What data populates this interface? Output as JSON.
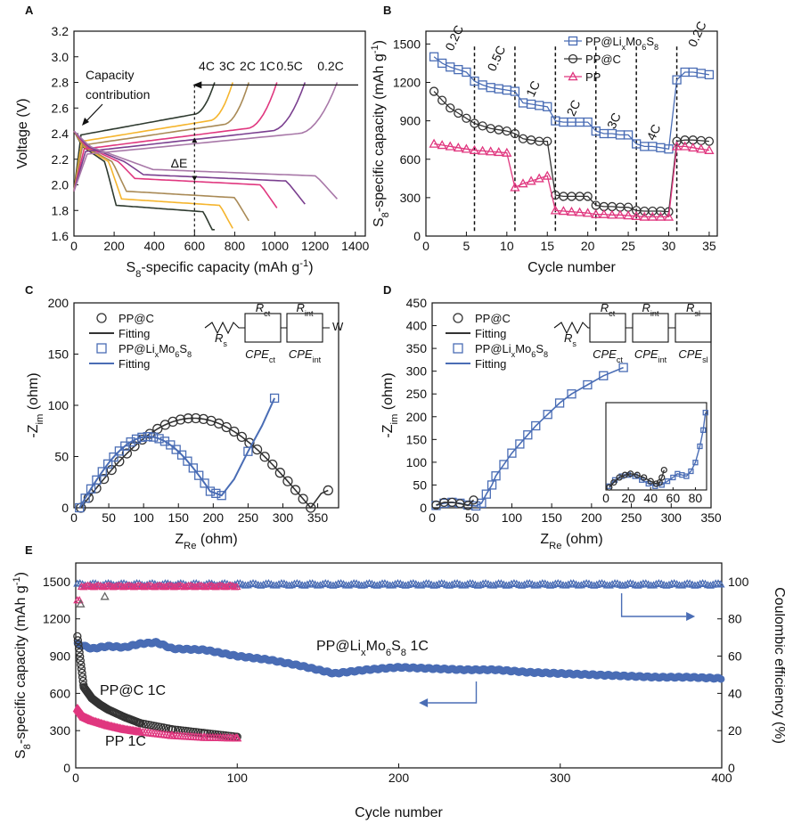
{
  "colors": {
    "blue": "#4a6db5",
    "pink": "#e0377f",
    "black": "#333333",
    "c4": "#2f3b30",
    "c3": "#f5b52e",
    "c2": "#a98a56",
    "c1": "#e0377f",
    "c05": "#7a3f8f",
    "c02": "#a878a8"
  },
  "chart_data": [
    {
      "panel": "A",
      "type": "line",
      "xlabel": "S8-specific capacity (mAh g-1)",
      "ylabel": "Voltage (V)",
      "xlim": [
        0,
        1450
      ],
      "ylim": [
        1.6,
        3.2
      ],
      "xticks": [
        0,
        200,
        400,
        600,
        800,
        1000,
        1200,
        1400
      ],
      "yticks": [
        1.6,
        1.8,
        2.0,
        2.2,
        2.4,
        2.6,
        2.8,
        3.0,
        3.2
      ],
      "rate_labels": [
        "4C",
        "3C",
        "2C",
        "1C",
        "0.5C",
        "0.2C"
      ],
      "annotations": {
        "capacity": [
          "Capacity",
          "contribution"
        ],
        "delta": "ΔE"
      },
      "series": [
        {
          "name": "4C",
          "color": "c4",
          "capacity": 700,
          "charge_plateau": 2.45,
          "discharge_plateau": 1.82
        },
        {
          "name": "3C",
          "color": "c3",
          "capacity": 790,
          "charge_plateau": 2.4,
          "discharge_plateau": 1.87
        },
        {
          "name": "2C",
          "color": "c2",
          "capacity": 870,
          "charge_plateau": 2.37,
          "discharge_plateau": 1.93
        },
        {
          "name": "1C",
          "color": "c1",
          "capacity": 1010,
          "charge_plateau": 2.34,
          "discharge_plateau": 2.03
        },
        {
          "name": "0.5C",
          "color": "c05",
          "capacity": 1150,
          "charge_plateau": 2.32,
          "discharge_plateau": 2.06
        },
        {
          "name": "0.2C",
          "color": "c02",
          "capacity": 1310,
          "charge_plateau": 2.3,
          "discharge_plateau": 2.1
        }
      ]
    },
    {
      "panel": "B",
      "type": "scatter",
      "xlabel": "Cycle number",
      "ylabel": "S8-specific capacity (mAh g-1)",
      "xlim": [
        0,
        36
      ],
      "ylim": [
        0,
        1600
      ],
      "xticks": [
        0,
        5,
        10,
        15,
        20,
        25,
        30,
        35
      ],
      "yticks": [
        0,
        300,
        600,
        900,
        1200,
        1500
      ],
      "rate_labels": [
        "0.2C",
        "0.5C",
        "1C",
        "2C",
        "3C",
        "4C",
        "0.2C"
      ],
      "dividers": [
        6,
        11,
        16,
        21,
        26,
        31
      ],
      "legend": [
        "PP@LixMo6S8",
        "PP@C",
        "PP"
      ],
      "series": [
        {
          "name": "PP@LixMo6S8",
          "color": "blue",
          "marker": "square",
          "x": [
            1,
            2,
            3,
            4,
            5,
            6,
            7,
            8,
            9,
            10,
            11,
            12,
            13,
            14,
            15,
            16,
            17,
            18,
            19,
            20,
            21,
            22,
            23,
            24,
            25,
            26,
            27,
            28,
            29,
            30,
            31,
            32,
            33,
            34,
            35
          ],
          "y": [
            1400,
            1350,
            1320,
            1300,
            1280,
            1210,
            1180,
            1160,
            1150,
            1140,
            1130,
            1040,
            1030,
            1020,
            1010,
            900,
            890,
            890,
            890,
            890,
            820,
            800,
            800,
            790,
            790,
            720,
            700,
            700,
            690,
            680,
            1220,
            1280,
            1280,
            1270,
            1260
          ]
        },
        {
          "name": "PP@C",
          "color": "black",
          "marker": "circle",
          "x": [
            1,
            2,
            3,
            4,
            5,
            6,
            7,
            8,
            9,
            10,
            11,
            12,
            13,
            14,
            15,
            16,
            17,
            18,
            19,
            20,
            21,
            22,
            23,
            24,
            25,
            26,
            27,
            28,
            29,
            30,
            31,
            32,
            33,
            34,
            35
          ],
          "y": [
            1130,
            1060,
            1000,
            960,
            920,
            880,
            860,
            840,
            830,
            820,
            800,
            760,
            750,
            740,
            740,
            320,
            310,
            310,
            310,
            310,
            240,
            230,
            230,
            225,
            225,
            200,
            195,
            195,
            195,
            190,
            740,
            750,
            750,
            745,
            740
          ]
        },
        {
          "name": "PP",
          "color": "pink",
          "marker": "triangle",
          "x": [
            1,
            2,
            3,
            4,
            5,
            6,
            7,
            8,
            9,
            10,
            11,
            12,
            13,
            14,
            15,
            16,
            17,
            18,
            19,
            20,
            21,
            22,
            23,
            24,
            25,
            26,
            27,
            28,
            29,
            30,
            31,
            32,
            33,
            34,
            35
          ],
          "y": [
            720,
            710,
            700,
            690,
            680,
            670,
            665,
            660,
            655,
            650,
            380,
            410,
            430,
            450,
            470,
            200,
            195,
            190,
            185,
            180,
            170,
            170,
            165,
            165,
            160,
            155,
            150,
            150,
            150,
            150,
            700,
            700,
            690,
            680,
            670
          ]
        }
      ]
    },
    {
      "panel": "C",
      "type": "scatter",
      "xlabel": "ZRe (ohm)",
      "ylabel": "-Zim (ohm)",
      "xlim": [
        0,
        380
      ],
      "ylim": [
        0,
        200
      ],
      "xticks": [
        0,
        50,
        100,
        150,
        200,
        250,
        300,
        350
      ],
      "yticks": [
        0,
        50,
        100,
        150,
        200
      ],
      "legend": [
        "PP@C",
        "Fitting",
        "PP@LixMo6S8",
        "Fitting"
      ],
      "circuit": {
        "rs": "Rs",
        "r1": "Rct",
        "r2": "Rint",
        "c1": "CPEct",
        "c2": "CPEint",
        "w": "W"
      },
      "series": [
        {
          "name": "PP@C",
          "color": "black",
          "marker": "circle",
          "type": "arc",
          "x_start": 10,
          "x_end": 340,
          "peak": 92,
          "tail_x": 365,
          "tail_y": 17
        },
        {
          "name": "PP@LixMo6S8",
          "color": "blue",
          "marker": "square",
          "type": "arc",
          "x_start": 8,
          "x_end": 212,
          "peak": 75,
          "tail_x": 288,
          "tail_y": 107
        }
      ]
    },
    {
      "panel": "D",
      "type": "scatter",
      "xlabel": "ZRe (ohm)",
      "ylabel": "-Zim (ohm)",
      "xlim": [
        0,
        350
      ],
      "ylim": [
        0,
        450
      ],
      "xticks": [
        0,
        50,
        100,
        150,
        200,
        250,
        300,
        350
      ],
      "yticks": [
        0,
        50,
        100,
        150,
        200,
        250,
        300,
        350,
        400,
        450
      ],
      "legend": [
        "PP@C",
        "Fitting",
        "PP@LixMo6S8",
        "Fitting"
      ],
      "circuit": {
        "rs": "Rs",
        "r1": "Rct",
        "r2": "Rint",
        "r3": "Rsl",
        "c1": "CPEct",
        "c2": "CPEint",
        "c3": "CPEsl"
      },
      "inset": {
        "xlim": [
          0,
          90
        ],
        "xticks": [
          0,
          20,
          40,
          60,
          80
        ]
      },
      "series": [
        {
          "name": "PP@LixMo6S8",
          "color": "blue",
          "marker": "square",
          "x": [
            5,
            15,
            25,
            35,
            45,
            55,
            62,
            68,
            75,
            80,
            90,
            100,
            110,
            120,
            130,
            145,
            160,
            175,
            195,
            215,
            240
          ],
          "y": [
            5,
            10,
            12,
            10,
            6,
            4,
            10,
            30,
            50,
            70,
            95,
            120,
            140,
            160,
            180,
            205,
            230,
            250,
            270,
            290,
            308
          ]
        },
        {
          "name": "PP@C",
          "color": "black",
          "marker": "circle",
          "x": [
            5,
            15,
            25,
            35,
            45,
            52
          ],
          "y": [
            6,
            12,
            12,
            9,
            5,
            17
          ]
        }
      ]
    },
    {
      "panel": "E",
      "type": "scatter",
      "xlabel": "Cycle number",
      "ylabel": "S8-specific capacity (mAh g-1)",
      "ylabel2": "Coulombic efficiency (%)",
      "xlim": [
        0,
        400
      ],
      "ylim": [
        0,
        1650
      ],
      "ylim2": [
        0,
        110
      ],
      "xticks": [
        0,
        100,
        200,
        300,
        400
      ],
      "yticks": [
        0,
        300,
        600,
        900,
        1200,
        1500
      ],
      "yticks2": [
        0,
        20,
        40,
        60,
        80,
        100
      ],
      "labels": {
        "main": "PP@LixMo6S8   1C",
        "ppc": "PP@C  1C",
        "pp": "PP  1C"
      },
      "series": [
        {
          "name": "PP@LixMo6S8 capacity",
          "color": "blue",
          "marker": "circle",
          "x": [
            1,
            10,
            20,
            30,
            40,
            50,
            60,
            80,
            100,
            120,
            140,
            160,
            180,
            200,
            220,
            240,
            260,
            280,
            300,
            320,
            340,
            360,
            380,
            400
          ],
          "y": [
            1000,
            960,
            980,
            970,
            1000,
            1010,
            960,
            950,
            900,
            870,
            820,
            760,
            790,
            810,
            800,
            790,
            790,
            770,
            760,
            750,
            740,
            730,
            730,
            720
          ]
        },
        {
          "name": "PP@C capacity",
          "color": "black",
          "marker": "circle",
          "x": [
            1,
            5,
            10,
            15,
            20,
            30,
            40,
            60,
            80,
            100
          ],
          "y": [
            1060,
            650,
            560,
            510,
            470,
            410,
            360,
            310,
            280,
            250
          ]
        },
        {
          "name": "PP capacity",
          "color": "pink",
          "marker": "triangle",
          "x": [
            1,
            5,
            10,
            20,
            30,
            40,
            60,
            80,
            100
          ],
          "y": [
            480,
            410,
            380,
            340,
            310,
            290,
            260,
            245,
            240
          ]
        },
        {
          "name": "PP@LixMo6S8 CE",
          "color": "blue",
          "marker": "triangle",
          "x": [
            1,
            400
          ],
          "y": [
            99,
            98
          ]
        },
        {
          "name": "PP CE",
          "color": "pink",
          "marker": "triangle",
          "x": [
            1,
            100
          ],
          "y": [
            96,
            98
          ]
        }
      ]
    }
  ]
}
